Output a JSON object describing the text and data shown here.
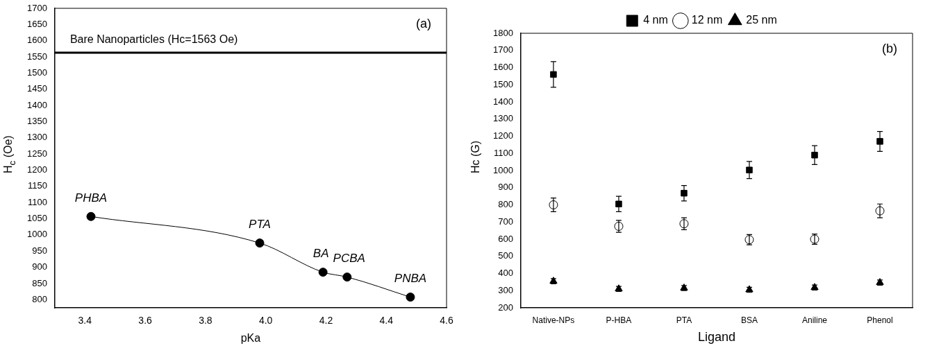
{
  "chart_data": [
    {
      "type": "line",
      "xlabel": "pKa",
      "ylabel": "H$_{c}$ (Oe)",
      "xlim": [
        3.3,
        4.6
      ],
      "xticks": [
        3.4,
        3.6,
        3.8,
        {
          "value": 4,
          "label": "4.0"
        },
        4.2,
        4.4,
        4.6
      ],
      "ylim": [
        775,
        1700
      ],
      "yticks": [
        800,
        850,
        900,
        950,
        1000,
        1050,
        1100,
        1150,
        1200,
        1250,
        1300,
        1350,
        1400,
        1450,
        1500,
        1550,
        1600,
        1650,
        1700
      ],
      "grid": false,
      "legend": false,
      "marker": "circle",
      "line_style": "solid",
      "series": [
        {
          "color": "#000000",
          "x": [
            3.42,
            3.98,
            4.19,
            4.27,
            4.48
          ],
          "values": [
            1057,
            975,
            885,
            870,
            808
          ]
        }
      ],
      "ref_lines": [
        {
          "axis": "y",
          "value": 1563,
          "label": "Bare Nanoparticles (Hc=1563 Oe)",
          "color": "#000000"
        }
      ],
      "annotations": [
        "(a)",
        {
          "text": "PHBA",
          "x": 3.42,
          "y": 1057
        },
        {
          "text": "PTA",
          "x": 3.98,
          "y": 975
        },
        {
          "text": "BA",
          "x": 4.19,
          "y": 885
        },
        {
          "text": "PCBA",
          "x": 4.27,
          "y": 870
        },
        {
          "text": "PNBA",
          "x": 4.48,
          "y": 808
        }
      ]
    },
    {
      "type": "scatter",
      "xlabel": "Ligand",
      "ylabel": "Hc (G)",
      "categories": [
        "Native-NPs",
        "P-HBA",
        "PTA",
        "BSA",
        "Aniline",
        "Phenol"
      ],
      "ylim": [
        200,
        1800
      ],
      "yticks": [
        200,
        300,
        400,
        500,
        600,
        700,
        800,
        900,
        1000,
        1100,
        1200,
        1300,
        1400,
        1500,
        1600,
        1700,
        1800
      ],
      "grid": false,
      "legend": "top",
      "series": [
        {
          "name": "4 nm",
          "color": "#000000",
          "marker": "square",
          "values": [
            1560,
            805,
            868,
            1003,
            1090,
            1170
          ],
          "errors": [
            75,
            45,
            45,
            50,
            55,
            58
          ]
        },
        {
          "name": "12 nm",
          "color": "#000000",
          "marker": "circle",
          "values": [
            800,
            675,
            690,
            597,
            600,
            765
          ],
          "errors": [
            40,
            35,
            35,
            30,
            30,
            40
          ]
        },
        {
          "name": "25 nm",
          "color": "#000000",
          "marker": "triangle",
          "values": [
            355,
            310,
            315,
            305,
            318,
            347
          ],
          "errors": [
            15,
            15,
            15,
            15,
            15,
            15
          ]
        }
      ],
      "annotations": [
        "(b)"
      ]
    }
  ]
}
